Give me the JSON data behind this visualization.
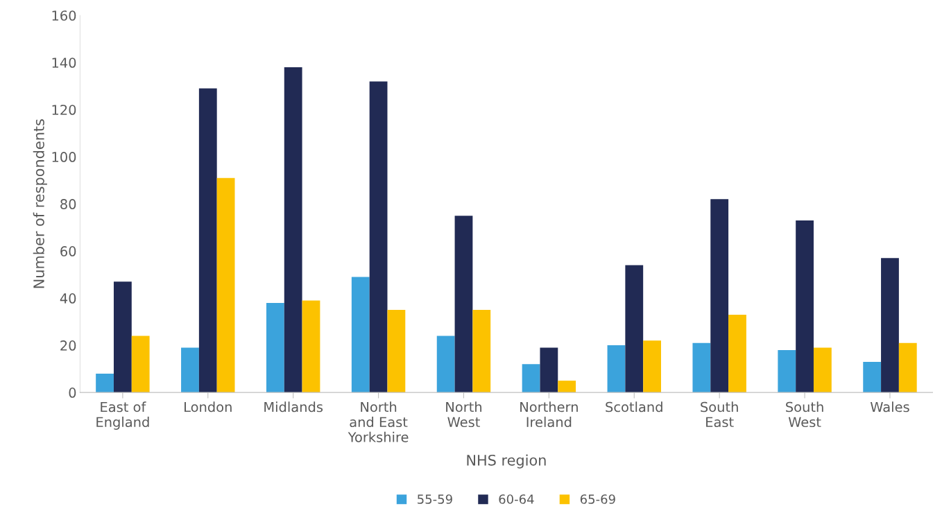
{
  "chart_data": {
    "type": "bar",
    "xlabel": "NHS region",
    "ylabel": "Number of respondents",
    "categories": [
      "East of\nEngland",
      "London",
      "Midlands",
      "North\nand East\nYorkshire",
      "North\nWest",
      "Northern\nIreland",
      "Scotland",
      "South\nEast",
      "South\nWest",
      "Wales"
    ],
    "series": [
      {
        "name": "55-59",
        "color": "#3ba3dc",
        "values": [
          8,
          19,
          38,
          49,
          24,
          12,
          20,
          21,
          18,
          13
        ]
      },
      {
        "name": "60-64",
        "color": "#212a54",
        "values": [
          47,
          129,
          138,
          132,
          75,
          19,
          54,
          82,
          73,
          57
        ]
      },
      {
        "name": "65-69",
        "color": "#fcc200",
        "values": [
          24,
          91,
          39,
          35,
          35,
          5,
          22,
          33,
          19,
          21
        ]
      }
    ],
    "ylim": [
      0,
      160
    ],
    "yticks": [
      0,
      20,
      40,
      60,
      80,
      100,
      120,
      140,
      160
    ],
    "grid": false,
    "legend": "bottom"
  }
}
